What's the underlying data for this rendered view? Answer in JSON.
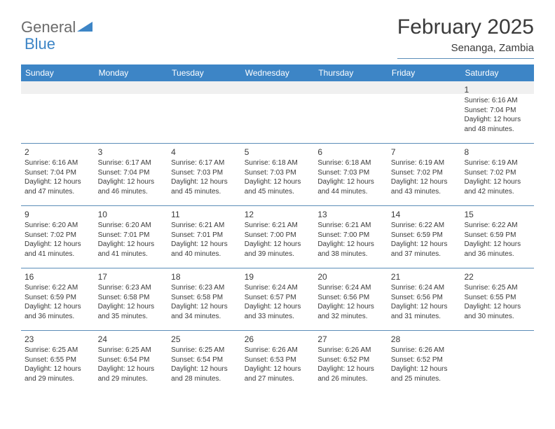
{
  "logo": {
    "general": "General",
    "blue": "Blue"
  },
  "title": "February 2025",
  "location": "Senanga, Zambia",
  "header_bg": "#3d85c6",
  "border_color": "#5b8db8",
  "shade_color": "#f0f0f0",
  "text_color": "#3a3a3a",
  "weekdays": [
    "Sunday",
    "Monday",
    "Tuesday",
    "Wednesday",
    "Thursday",
    "Friday",
    "Saturday"
  ],
  "weeks": [
    [
      null,
      null,
      null,
      null,
      null,
      null,
      {
        "n": "1",
        "sr": "Sunrise: 6:16 AM",
        "ss": "Sunset: 7:04 PM",
        "d1": "Daylight: 12 hours",
        "d2": "and 48 minutes."
      }
    ],
    [
      {
        "n": "2",
        "sr": "Sunrise: 6:16 AM",
        "ss": "Sunset: 7:04 PM",
        "d1": "Daylight: 12 hours",
        "d2": "and 47 minutes."
      },
      {
        "n": "3",
        "sr": "Sunrise: 6:17 AM",
        "ss": "Sunset: 7:04 PM",
        "d1": "Daylight: 12 hours",
        "d2": "and 46 minutes."
      },
      {
        "n": "4",
        "sr": "Sunrise: 6:17 AM",
        "ss": "Sunset: 7:03 PM",
        "d1": "Daylight: 12 hours",
        "d2": "and 45 minutes."
      },
      {
        "n": "5",
        "sr": "Sunrise: 6:18 AM",
        "ss": "Sunset: 7:03 PM",
        "d1": "Daylight: 12 hours",
        "d2": "and 45 minutes."
      },
      {
        "n": "6",
        "sr": "Sunrise: 6:18 AM",
        "ss": "Sunset: 7:03 PM",
        "d1": "Daylight: 12 hours",
        "d2": "and 44 minutes."
      },
      {
        "n": "7",
        "sr": "Sunrise: 6:19 AM",
        "ss": "Sunset: 7:02 PM",
        "d1": "Daylight: 12 hours",
        "d2": "and 43 minutes."
      },
      {
        "n": "8",
        "sr": "Sunrise: 6:19 AM",
        "ss": "Sunset: 7:02 PM",
        "d1": "Daylight: 12 hours",
        "d2": "and 42 minutes."
      }
    ],
    [
      {
        "n": "9",
        "sr": "Sunrise: 6:20 AM",
        "ss": "Sunset: 7:02 PM",
        "d1": "Daylight: 12 hours",
        "d2": "and 41 minutes."
      },
      {
        "n": "10",
        "sr": "Sunrise: 6:20 AM",
        "ss": "Sunset: 7:01 PM",
        "d1": "Daylight: 12 hours",
        "d2": "and 41 minutes."
      },
      {
        "n": "11",
        "sr": "Sunrise: 6:21 AM",
        "ss": "Sunset: 7:01 PM",
        "d1": "Daylight: 12 hours",
        "d2": "and 40 minutes."
      },
      {
        "n": "12",
        "sr": "Sunrise: 6:21 AM",
        "ss": "Sunset: 7:00 PM",
        "d1": "Daylight: 12 hours",
        "d2": "and 39 minutes."
      },
      {
        "n": "13",
        "sr": "Sunrise: 6:21 AM",
        "ss": "Sunset: 7:00 PM",
        "d1": "Daylight: 12 hours",
        "d2": "and 38 minutes."
      },
      {
        "n": "14",
        "sr": "Sunrise: 6:22 AM",
        "ss": "Sunset: 6:59 PM",
        "d1": "Daylight: 12 hours",
        "d2": "and 37 minutes."
      },
      {
        "n": "15",
        "sr": "Sunrise: 6:22 AM",
        "ss": "Sunset: 6:59 PM",
        "d1": "Daylight: 12 hours",
        "d2": "and 36 minutes."
      }
    ],
    [
      {
        "n": "16",
        "sr": "Sunrise: 6:22 AM",
        "ss": "Sunset: 6:59 PM",
        "d1": "Daylight: 12 hours",
        "d2": "and 36 minutes."
      },
      {
        "n": "17",
        "sr": "Sunrise: 6:23 AM",
        "ss": "Sunset: 6:58 PM",
        "d1": "Daylight: 12 hours",
        "d2": "and 35 minutes."
      },
      {
        "n": "18",
        "sr": "Sunrise: 6:23 AM",
        "ss": "Sunset: 6:58 PM",
        "d1": "Daylight: 12 hours",
        "d2": "and 34 minutes."
      },
      {
        "n": "19",
        "sr": "Sunrise: 6:24 AM",
        "ss": "Sunset: 6:57 PM",
        "d1": "Daylight: 12 hours",
        "d2": "and 33 minutes."
      },
      {
        "n": "20",
        "sr": "Sunrise: 6:24 AM",
        "ss": "Sunset: 6:56 PM",
        "d1": "Daylight: 12 hours",
        "d2": "and 32 minutes."
      },
      {
        "n": "21",
        "sr": "Sunrise: 6:24 AM",
        "ss": "Sunset: 6:56 PM",
        "d1": "Daylight: 12 hours",
        "d2": "and 31 minutes."
      },
      {
        "n": "22",
        "sr": "Sunrise: 6:25 AM",
        "ss": "Sunset: 6:55 PM",
        "d1": "Daylight: 12 hours",
        "d2": "and 30 minutes."
      }
    ],
    [
      {
        "n": "23",
        "sr": "Sunrise: 6:25 AM",
        "ss": "Sunset: 6:55 PM",
        "d1": "Daylight: 12 hours",
        "d2": "and 29 minutes."
      },
      {
        "n": "24",
        "sr": "Sunrise: 6:25 AM",
        "ss": "Sunset: 6:54 PM",
        "d1": "Daylight: 12 hours",
        "d2": "and 29 minutes."
      },
      {
        "n": "25",
        "sr": "Sunrise: 6:25 AM",
        "ss": "Sunset: 6:54 PM",
        "d1": "Daylight: 12 hours",
        "d2": "and 28 minutes."
      },
      {
        "n": "26",
        "sr": "Sunrise: 6:26 AM",
        "ss": "Sunset: 6:53 PM",
        "d1": "Daylight: 12 hours",
        "d2": "and 27 minutes."
      },
      {
        "n": "27",
        "sr": "Sunrise: 6:26 AM",
        "ss": "Sunset: 6:52 PM",
        "d1": "Daylight: 12 hours",
        "d2": "and 26 minutes."
      },
      {
        "n": "28",
        "sr": "Sunrise: 6:26 AM",
        "ss": "Sunset: 6:52 PM",
        "d1": "Daylight: 12 hours",
        "d2": "and 25 minutes."
      },
      null
    ]
  ]
}
